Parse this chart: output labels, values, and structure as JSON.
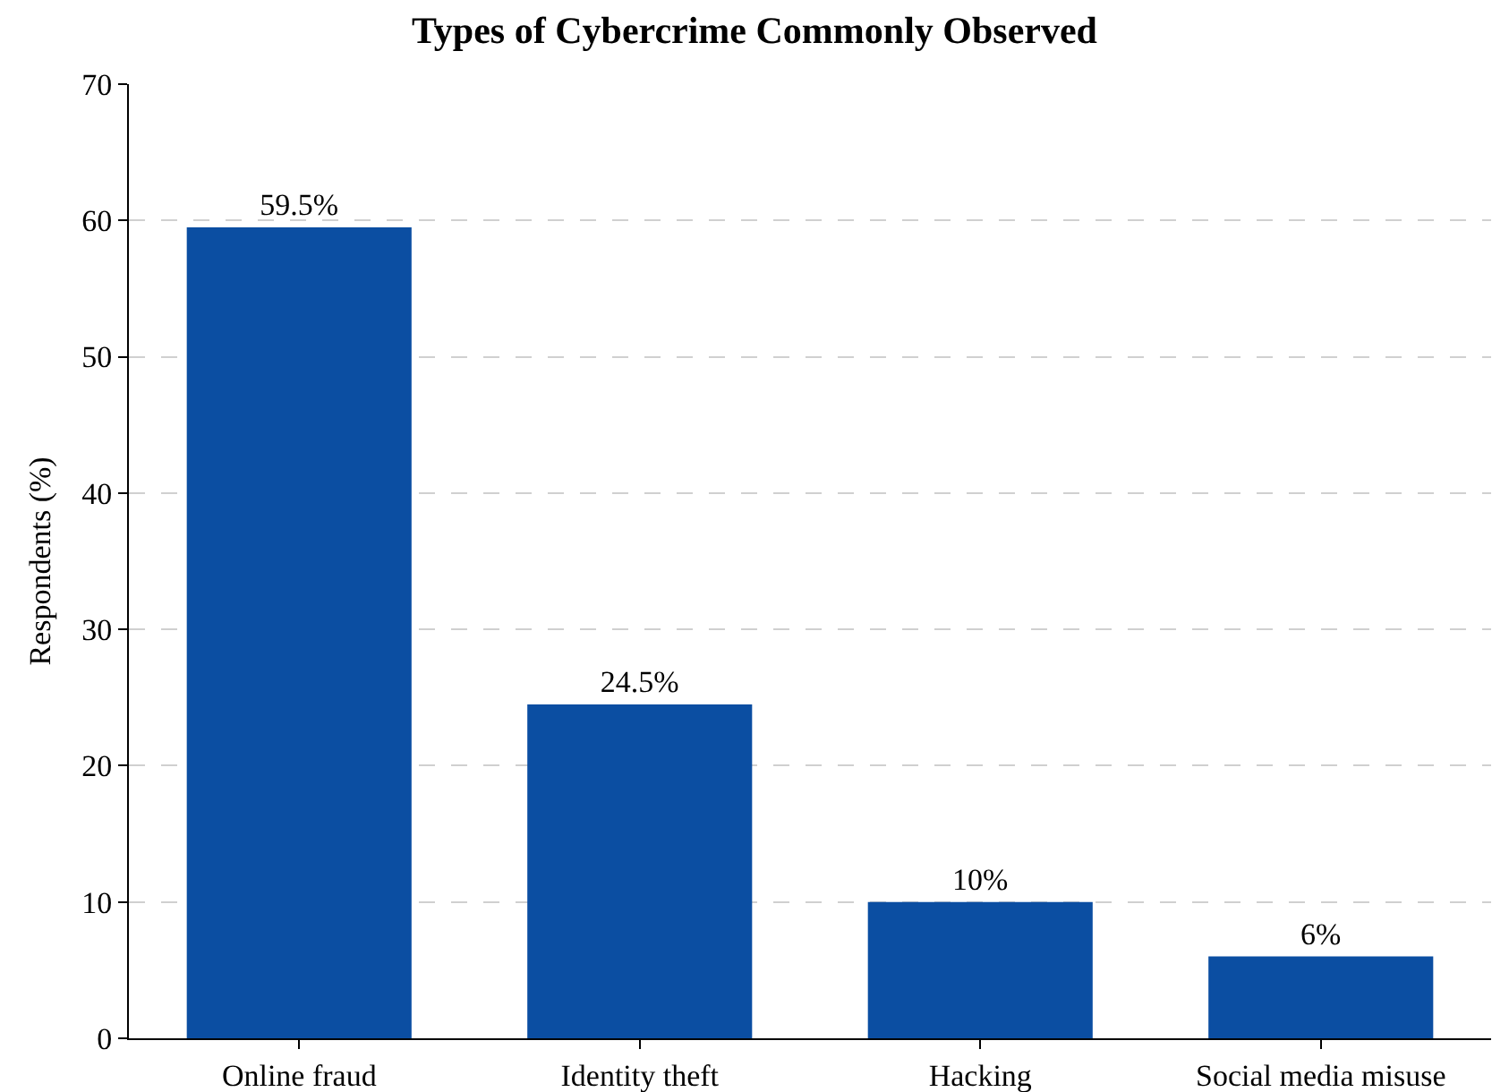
{
  "chart_data": {
    "type": "bar",
    "title": "Types of Cybercrime Commonly Observed",
    "ylabel": "Respondents (%)",
    "categories": [
      "Online fraud",
      "Identity theft",
      "Hacking",
      "Social media misuse"
    ],
    "values": [
      59.5,
      24.5,
      10,
      6
    ],
    "value_labels": [
      "59.5%",
      "24.5%",
      "10%",
      "6%"
    ],
    "color": "#0b4ea2",
    "ylim": [
      0,
      70
    ],
    "yticks": [
      0,
      10,
      20,
      30,
      40,
      50,
      60,
      70
    ],
    "grid": "y"
  }
}
